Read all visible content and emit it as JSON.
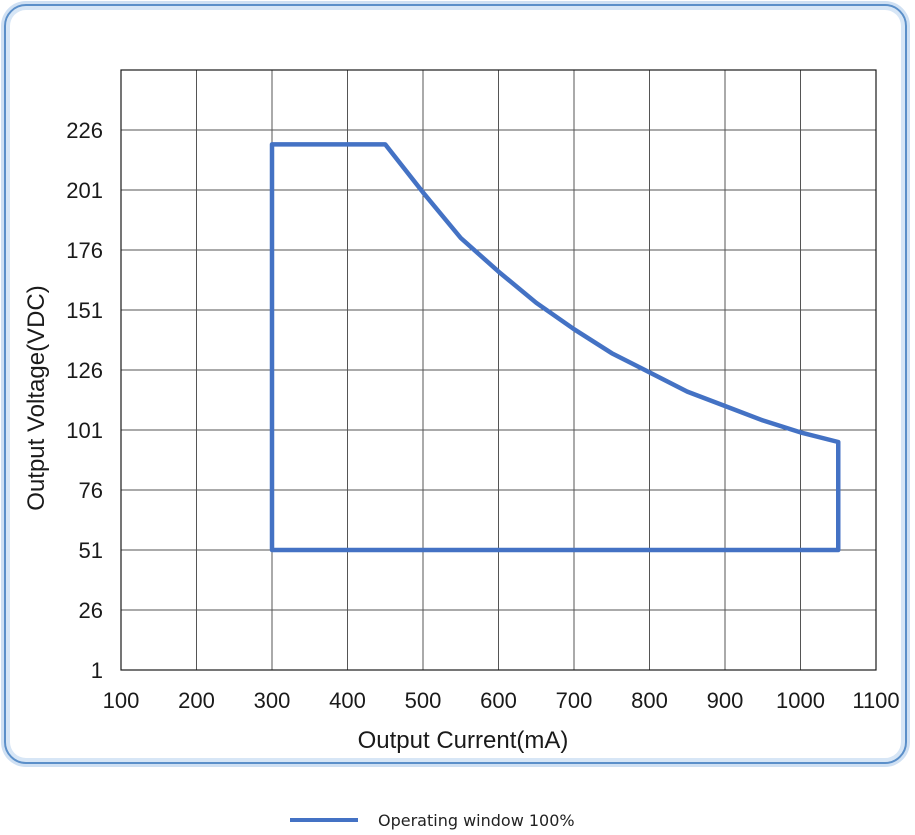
{
  "chart_data": {
    "type": "line",
    "title": "",
    "xlabel": "Output Current(mA)",
    "ylabel": "Output Voltage(VDC)",
    "xlim": [
      100,
      1100
    ],
    "ylim": [
      1,
      251
    ],
    "x_ticks": [
      100,
      200,
      300,
      400,
      500,
      600,
      700,
      800,
      900,
      1000,
      1100
    ],
    "y_ticks": [
      1,
      26,
      51,
      76,
      101,
      126,
      151,
      176,
      201,
      226
    ],
    "grid": true,
    "legend_position": "bottom-center",
    "series": [
      {
        "name": "Operating window 100%",
        "color": "#4472c4",
        "closed": true,
        "points": [
          [
            300,
            51
          ],
          [
            300,
            220
          ],
          [
            450,
            220
          ],
          [
            500,
            200
          ],
          [
            550,
            181
          ],
          [
            600,
            167
          ],
          [
            650,
            154
          ],
          [
            700,
            143
          ],
          [
            750,
            133
          ],
          [
            800,
            125
          ],
          [
            850,
            117
          ],
          [
            900,
            111
          ],
          [
            950,
            105
          ],
          [
            1000,
            100
          ],
          [
            1050,
            96
          ],
          [
            1050,
            51
          ]
        ]
      }
    ]
  }
}
